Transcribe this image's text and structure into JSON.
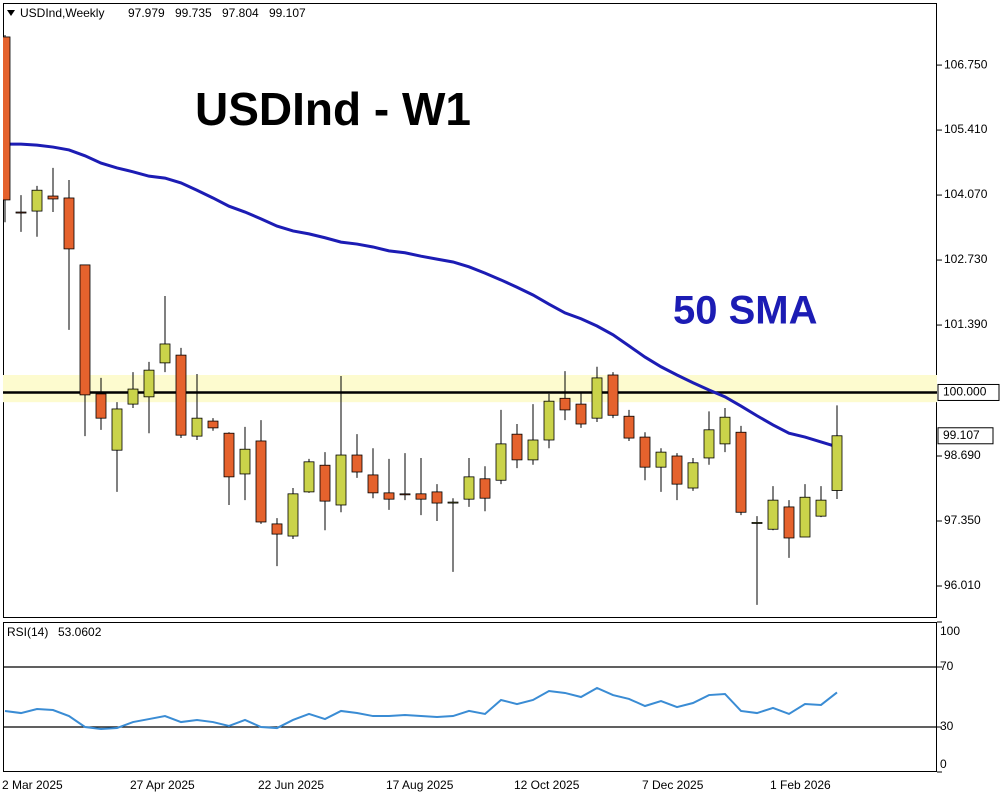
{
  "chart_data": [
    {
      "type": "candlestick",
      "title": "USDInd - W1",
      "symbol": "USDInd,Weekly",
      "categories": [
        "2 Mar 2025",
        null,
        null,
        null,
        null,
        null,
        null,
        null,
        "27 Apr 2025",
        null,
        null,
        null,
        null,
        null,
        null,
        null,
        "22 Jun 2025",
        null,
        null,
        null,
        null,
        null,
        null,
        null,
        "17 Aug 2025",
        null,
        null,
        null,
        null,
        null,
        null,
        null,
        "12 Oct 2025",
        null,
        null,
        null,
        null,
        null,
        null,
        null,
        "7 Dec 2025",
        null,
        null,
        null,
        null,
        null,
        null,
        null,
        "1 Feb 2026",
        null,
        null,
        null,
        null
      ],
      "open": [
        107.33,
        103.72,
        103.74,
        104.05,
        104.01,
        102.63,
        99.97,
        98.81,
        99.76,
        99.91,
        100.61,
        100.77,
        99.1,
        99.41,
        99.16,
        98.32,
        99.0,
        97.29,
        97.04,
        97.95,
        98.5,
        97.68,
        98.71,
        98.3,
        97.93,
        97.91,
        97.91,
        97.95,
        97.73,
        97.8,
        98.22,
        98.19,
        99.14,
        98.61,
        99.02,
        99.88,
        99.76,
        99.47,
        100.36,
        99.51,
        99.08,
        98.46,
        98.69,
        98.03,
        98.65,
        98.94,
        99.18,
        97.31,
        97.18,
        97.64,
        97.02,
        97.45,
        97.979
      ],
      "high": [
        107.37,
        104.07,
        104.26,
        104.63,
        104.38,
        102.63,
        100.3,
        99.8,
        100.42,
        100.63,
        101.99,
        100.92,
        100.38,
        99.47,
        99.18,
        99.29,
        99.43,
        97.41,
        98.03,
        98.63,
        98.77,
        100.34,
        99.14,
        98.85,
        98.63,
        98.75,
        98.65,
        98.11,
        97.82,
        98.65,
        98.48,
        99.64,
        99.35,
        99.76,
        99.97,
        100.44,
        100.0,
        100.53,
        100.42,
        99.64,
        99.18,
        98.85,
        98.75,
        98.65,
        99.61,
        99.68,
        99.31,
        97.45,
        98.07,
        97.78,
        98.11,
        98.07,
        99.735
      ],
      "low": [
        103.51,
        103.31,
        103.21,
        103.72,
        101.29,
        99.1,
        99.23,
        97.95,
        99.68,
        99.16,
        100.42,
        99.06,
        99.02,
        99.21,
        97.68,
        97.78,
        97.29,
        96.42,
        96.98,
        97.93,
        97.16,
        97.53,
        98.24,
        97.82,
        97.58,
        97.78,
        97.47,
        97.35,
        96.3,
        97.64,
        97.55,
        98.11,
        98.44,
        98.51,
        98.85,
        99.43,
        99.27,
        99.39,
        99.47,
        99.0,
        98.19,
        97.95,
        97.78,
        97.97,
        98.51,
        98.77,
        97.47,
        95.62,
        97.16,
        96.59,
        97.02,
        97.43,
        97.804
      ],
      "close": [
        103.97,
        103.7,
        104.17,
        103.99,
        102.96,
        99.95,
        99.47,
        99.66,
        100.07,
        100.46,
        101.0,
        99.12,
        99.47,
        99.27,
        98.26,
        98.83,
        97.33,
        97.08,
        97.91,
        98.57,
        97.76,
        98.71,
        98.36,
        97.93,
        97.8,
        97.89,
        97.8,
        97.72,
        97.74,
        98.26,
        97.82,
        98.94,
        98.61,
        99.02,
        99.82,
        99.64,
        99.35,
        100.3,
        99.53,
        99.06,
        98.46,
        98.77,
        98.11,
        98.55,
        99.23,
        99.49,
        97.53,
        97.32,
        97.78,
        97.0,
        97.84,
        97.78,
        99.107
      ],
      "up_color": "#cad34a",
      "down_color": "#e5622d",
      "sma": {
        "name": "50 SMA",
        "color": "#1c1cb4",
        "values": [
          105.12,
          105.12,
          105.1,
          105.06,
          105.0,
          104.88,
          104.73,
          104.63,
          104.55,
          104.46,
          104.42,
          104.32,
          104.17,
          104.01,
          103.84,
          103.72,
          103.58,
          103.43,
          103.33,
          103.27,
          103.19,
          103.1,
          103.06,
          103.0,
          102.92,
          102.88,
          102.81,
          102.75,
          102.69,
          102.59,
          102.46,
          102.32,
          102.17,
          102.01,
          101.82,
          101.64,
          101.52,
          101.37,
          101.19,
          100.96,
          100.73,
          100.53,
          100.36,
          100.2,
          100.05,
          99.91,
          99.72,
          99.52,
          99.33,
          99.16,
          99.08,
          98.98,
          98.88
        ]
      },
      "level": {
        "value": 100,
        "label": "100.000"
      },
      "zone": [
        99.8,
        100.36
      ],
      "zone_color": "#fdfbcf",
      "ylim": [
        95.35,
        108.03
      ],
      "yticks": [
        {
          "value": 106.75,
          "label": "106.750"
        },
        {
          "value": 105.41,
          "label": "105.410"
        },
        {
          "value": 104.07,
          "label": "104.070"
        },
        {
          "value": 102.73,
          "label": "102.730"
        },
        {
          "value": 101.39,
          "label": "101.390"
        },
        {
          "value": 98.69,
          "label": "98.690"
        },
        {
          "value": 97.35,
          "label": "97.350"
        },
        {
          "value": 96.01,
          "label": "96.010"
        }
      ],
      "grid": false
    },
    {
      "type": "line",
      "title": "RSI(14)",
      "color": "#3a8cd4",
      "values": [
        40.7,
        39.3,
        42.0,
        41.3,
        37.3,
        30.0,
        28.7,
        29.3,
        33.3,
        35.3,
        37.3,
        33.3,
        34.7,
        33.3,
        30.7,
        34.7,
        30.0,
        29.3,
        34.7,
        38.7,
        35.3,
        40.7,
        39.3,
        37.3,
        37.3,
        38.0,
        37.3,
        36.7,
        37.3,
        40.7,
        38.7,
        48.0,
        45.3,
        48.0,
        54.0,
        52.7,
        50.0,
        56.0,
        51.3,
        48.7,
        44.0,
        47.3,
        43.3,
        46.0,
        51.3,
        52.0,
        40.7,
        39.3,
        42.7,
        38.7,
        45.3,
        44.7,
        53.0602
      ],
      "levels": [
        70,
        30
      ],
      "ylim": [
        0,
        100
      ],
      "yticks": [
        100,
        70,
        30,
        0
      ],
      "grid": false
    }
  ]
}
